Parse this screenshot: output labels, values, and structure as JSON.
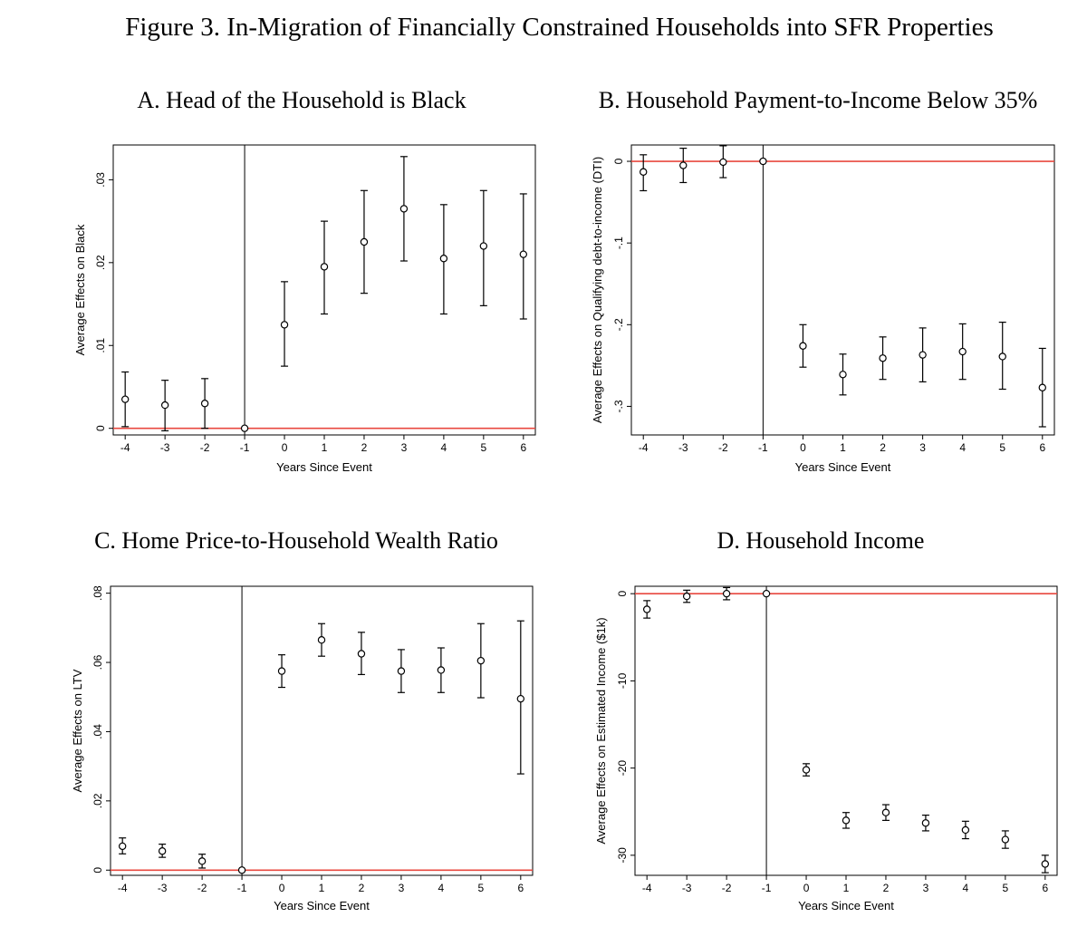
{
  "figure_title": "Figure 3. In-Migration of Financially Constrained Households into SFR Properties",
  "chart_data": [
    {
      "id": "A",
      "type": "scatter",
      "title": "A. Head of the Household is Black",
      "xlabel": "Years Since Event",
      "ylabel": "Average Effects on Black",
      "x": [
        -4,
        -3,
        -2,
        -1,
        0,
        1,
        2,
        3,
        4,
        5,
        6
      ],
      "x_tick_labels": [
        "-4",
        "-3",
        "-2",
        "-1",
        "0",
        "1",
        "2",
        "3",
        "4",
        "5",
        "6"
      ],
      "y": [
        0.0035,
        0.0028,
        0.003,
        0.0,
        0.0125,
        0.0195,
        0.0225,
        0.0265,
        0.0205,
        0.022,
        0.021
      ],
      "y_lower": [
        0.0002,
        -0.0003,
        0.0,
        0.0,
        0.0075,
        0.0138,
        0.0163,
        0.0202,
        0.0138,
        0.0148,
        0.0132
      ],
      "y_upper": [
        0.0068,
        0.0058,
        0.006,
        0.0,
        0.0177,
        0.025,
        0.0287,
        0.0328,
        0.027,
        0.0287,
        0.0283
      ],
      "y_ticks": [
        0,
        0.01,
        0.02,
        0.03
      ],
      "y_tick_labels": [
        "0",
        ".01",
        ".02",
        ".03"
      ],
      "xlim": [
        -4.3,
        6.3
      ],
      "ylim": [
        -0.0008,
        0.0342
      ],
      "reference_line_y": 0,
      "event_line_x": -1,
      "reference_color": "#e8483f"
    },
    {
      "id": "B",
      "type": "scatter",
      "title": "B. Household Payment-to-Income Below 35%",
      "xlabel": "Years Since Event",
      "ylabel": "Average Effects on Qualifying debt-to-income (DTI)",
      "x": [
        -4,
        -3,
        -2,
        -1,
        0,
        1,
        2,
        3,
        4,
        5,
        6
      ],
      "x_tick_labels": [
        "-4",
        "-3",
        "-2",
        "-1",
        "0",
        "1",
        "2",
        "3",
        "4",
        "5",
        "6"
      ],
      "y": [
        -0.013,
        -0.005,
        -0.001,
        0.0,
        -0.226,
        -0.261,
        -0.241,
        -0.237,
        -0.233,
        -0.239,
        -0.277
      ],
      "y_lower": [
        -0.036,
        -0.026,
        -0.02,
        0.0,
        -0.252,
        -0.286,
        -0.267,
        -0.27,
        -0.267,
        -0.279,
        -0.325
      ],
      "y_upper": [
        0.008,
        0.016,
        0.019,
        0.0,
        -0.2,
        -0.236,
        -0.215,
        -0.204,
        -0.199,
        -0.197,
        -0.229
      ],
      "y_ticks": [
        0,
        -0.1,
        -0.2,
        -0.3
      ],
      "y_tick_labels": [
        "0",
        "-.1",
        "-.2",
        "-.3"
      ],
      "xlim": [
        -4.3,
        6.3
      ],
      "ylim": [
        -0.335,
        0.02
      ],
      "reference_line_y": 0,
      "event_line_x": -1,
      "reference_color": "#e8483f"
    },
    {
      "id": "C",
      "type": "scatter",
      "title": "C. Home Price-to-Household Wealth Ratio",
      "xlabel": "Years Since Event",
      "ylabel": "Average Effects on LTV",
      "x": [
        -4,
        -3,
        -2,
        -1,
        0,
        1,
        2,
        3,
        4,
        5,
        6
      ],
      "x_tick_labels": [
        "-4",
        "-3",
        "-2",
        "-1",
        "0",
        "1",
        "2",
        "3",
        "4",
        "5",
        "6"
      ],
      "y": [
        0.0069,
        0.0055,
        0.0026,
        0.0,
        0.0575,
        0.0665,
        0.0625,
        0.0575,
        0.0578,
        0.0605,
        0.0495
      ],
      "y_lower": [
        0.0047,
        0.0037,
        0.0006,
        0.0,
        0.0528,
        0.0618,
        0.0565,
        0.0513,
        0.0513,
        0.0498,
        0.0278
      ],
      "y_upper": [
        0.0093,
        0.0075,
        0.0046,
        0.0,
        0.0622,
        0.0712,
        0.0687,
        0.0637,
        0.0642,
        0.0712,
        0.072
      ],
      "y_ticks": [
        0,
        0.02,
        0.04,
        0.06,
        0.08
      ],
      "y_tick_labels": [
        "0",
        ".02",
        ".04",
        ".06",
        ".08"
      ],
      "xlim": [
        -4.3,
        6.3
      ],
      "ylim": [
        -0.0015,
        0.082
      ],
      "reference_line_y": 0,
      "event_line_x": -1,
      "reference_color": "#e8483f"
    },
    {
      "id": "D",
      "type": "scatter",
      "title": "D. Household Income",
      "xlabel": "Years Since Event",
      "ylabel": "Average Effects on Estimated Income ($1k)",
      "x": [
        -4,
        -3,
        -2,
        -1,
        0,
        1,
        2,
        3,
        4,
        5,
        6
      ],
      "x_tick_labels": [
        "-4",
        "-3",
        "-2",
        "-1",
        "0",
        "1",
        "2",
        "3",
        "4",
        "5",
        "6"
      ],
      "y": [
        -1.8,
        -0.3,
        0.0,
        0.0,
        -20.2,
        -26.0,
        -25.1,
        -26.3,
        -27.1,
        -28.2,
        -31.0
      ],
      "y_lower": [
        -2.8,
        -1.0,
        -0.7,
        0.0,
        -20.9,
        -26.9,
        -26.0,
        -27.2,
        -28.1,
        -29.2,
        -32.0
      ],
      "y_upper": [
        -0.8,
        0.4,
        0.7,
        0.0,
        -19.5,
        -25.1,
        -24.2,
        -25.4,
        -26.1,
        -27.2,
        -30.0
      ],
      "y_ticks": [
        0,
        -10,
        -20,
        -30
      ],
      "y_tick_labels": [
        "0",
        "-10",
        "-20",
        "-30"
      ],
      "xlim": [
        -4.3,
        6.3
      ],
      "ylim": [
        -32.3,
        0.85
      ],
      "reference_line_y": 0,
      "event_line_x": -1,
      "reference_color": "#e8483f"
    }
  ]
}
